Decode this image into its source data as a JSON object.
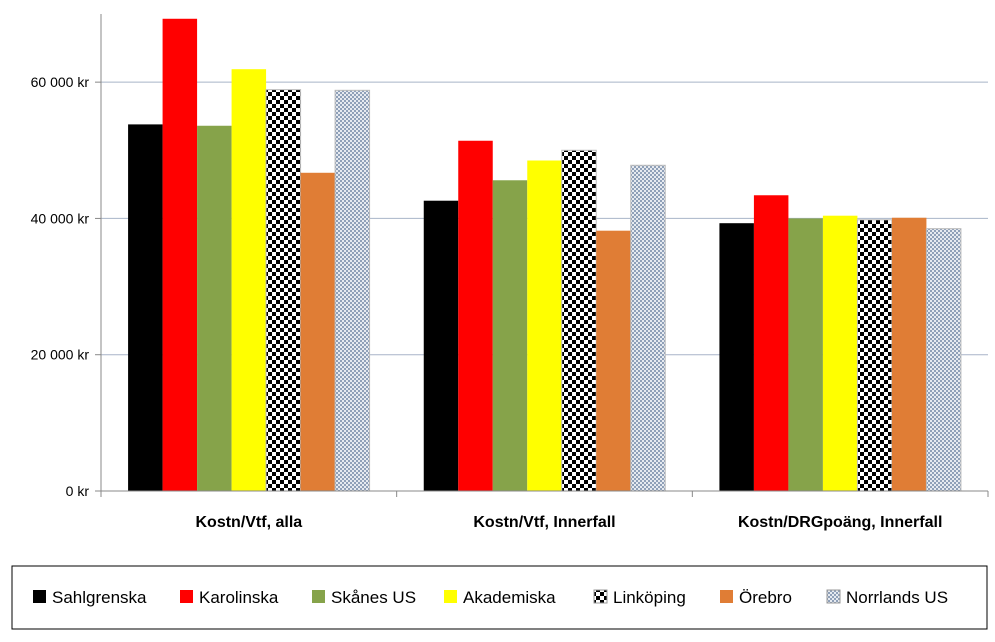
{
  "chart_data": {
    "type": "bar",
    "categories": [
      "Kostn/Vtf, alla",
      "Kostn/Vtf, Innerfall",
      "Kostn/DRGpoäng, Innerfall"
    ],
    "ylim": [
      0,
      70000
    ],
    "yticks": [
      0,
      20000,
      40000,
      60000
    ],
    "ytick_labels": [
      "0 kr",
      "20 000 kr",
      "40 000 kr",
      "60 000 kr"
    ],
    "grid": true,
    "legend_position": "bottom",
    "series": [
      {
        "name": "Sahlgrenska",
        "color": "#000000",
        "pattern": "solid",
        "values": [
          53800,
          42600,
          39300
        ]
      },
      {
        "name": "Karolinska",
        "color": "#ff0000",
        "pattern": "solid",
        "values": [
          69300,
          51400,
          43400
        ]
      },
      {
        "name": "Skånes US",
        "color": "#86a34a",
        "pattern": "solid",
        "values": [
          53600,
          45600,
          40000
        ]
      },
      {
        "name": "Akademiska",
        "color": "#ffff00",
        "pattern": "solid",
        "values": [
          61900,
          48500,
          40400
        ]
      },
      {
        "name": "Linköping",
        "color": "#000000",
        "pattern": "checker",
        "values": [
          58900,
          50000,
          39800
        ]
      },
      {
        "name": "Örebro",
        "color": "#e07d35",
        "pattern": "solid",
        "values": [
          46700,
          38200,
          40100
        ]
      },
      {
        "name": "Norrlands US",
        "color": "#b9c3d3",
        "pattern": "dots",
        "values": [
          58800,
          47800,
          38500
        ]
      }
    ]
  }
}
